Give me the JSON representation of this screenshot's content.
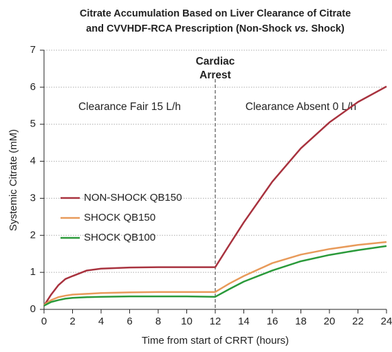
{
  "chart_data": {
    "type": "line",
    "title": [
      "Citrate Accumulation Based on Liver Clearance of Citrate",
      "and CVVHDF-RCA Prescription (Non-Shock",
      "vs.",
      "Shock)"
    ],
    "x_label": "Time from start of CRRT (hours)",
    "y_label": "Systemic Citrate (mM)",
    "annotations": [
      "Cardiac",
      "Arrest",
      "Clearance Fair 15 L/h",
      "Clearance Absent 0 L/h"
    ],
    "vline": 12,
    "x": [
      0,
      0.5,
      1,
      1.5,
      2,
      3,
      4,
      6,
      8,
      10,
      12,
      13,
      14,
      16,
      18,
      20,
      22,
      24
    ],
    "series": [
      {
        "name": "NON-SHOCK QB150",
        "color": "#a8323e",
        "values": [
          0.1,
          0.4,
          0.65,
          0.82,
          0.9,
          1.05,
          1.1,
          1.13,
          1.14,
          1.14,
          1.14,
          1.75,
          2.35,
          3.45,
          4.35,
          5.05,
          5.6,
          6.02
        ]
      },
      {
        "name": "SHOCK QB150",
        "color": "#e89a5a",
        "values": [
          0.12,
          0.25,
          0.33,
          0.37,
          0.4,
          0.42,
          0.44,
          0.46,
          0.47,
          0.47,
          0.47,
          0.7,
          0.9,
          1.25,
          1.48,
          1.63,
          1.74,
          1.82
        ]
      },
      {
        "name": "SHOCK QB100",
        "color": "#2a9a3a",
        "values": [
          0.1,
          0.2,
          0.25,
          0.29,
          0.31,
          0.33,
          0.34,
          0.35,
          0.35,
          0.35,
          0.34,
          0.55,
          0.75,
          1.05,
          1.3,
          1.47,
          1.6,
          1.71
        ]
      }
    ],
    "xlim": [
      0,
      24
    ],
    "ylim": [
      0,
      7
    ],
    "xticks": [
      0,
      2,
      4,
      6,
      8,
      10,
      12,
      14,
      16,
      18,
      20,
      22,
      24
    ],
    "yticks": [
      0,
      1,
      2,
      3,
      4,
      5,
      6,
      7
    ],
    "grid": true
  }
}
